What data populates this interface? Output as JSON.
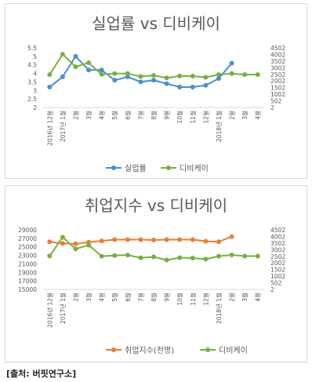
{
  "chart_data": [
    {
      "type": "line",
      "title": "실업률 vs 디비케이",
      "categories": [
        "2016년 12월",
        "2017년 1월",
        "2월",
        "3월",
        "4월",
        "5월",
        "6월",
        "7월",
        "8월",
        "9월",
        "10월",
        "11월",
        "12월",
        "2018년 1월",
        "2월",
        "3월",
        "4월"
      ],
      "y_left": {
        "min": 2,
        "max": 5.5,
        "ticks": [
          "2",
          "2.5",
          "3",
          "3.5",
          "4",
          "4.5",
          "5",
          "5.5"
        ]
      },
      "y_right": {
        "min": 2,
        "max": 4502,
        "ticks": [
          "2",
          "502",
          "1002",
          "1502",
          "2002",
          "2502",
          "3002",
          "3502",
          "4002",
          "4502"
        ]
      },
      "series": [
        {
          "name": "실업률",
          "axis": "left",
          "color": "#4a8fd0",
          "values": [
            3.2,
            3.8,
            5.0,
            4.2,
            4.2,
            3.6,
            3.8,
            3.5,
            3.6,
            3.4,
            3.2,
            3.2,
            3.3,
            3.7,
            4.6,
            null,
            null
          ]
        },
        {
          "name": "디비케이",
          "axis": "right",
          "color": "#77b041",
          "values": [
            2480,
            4020,
            3070,
            3380,
            2500,
            2560,
            2560,
            2340,
            2420,
            2230,
            2380,
            2370,
            2280,
            2480,
            2560,
            2480,
            2480
          ]
        }
      ]
    },
    {
      "type": "line",
      "title": "취업지수 vs 디비케이",
      "categories": [
        "2016년 12월",
        "2017년 1월",
        "2월",
        "3월",
        "4월",
        "5월",
        "6월",
        "7월",
        "8월",
        "9월",
        "10월",
        "11월",
        "12월",
        "2018년 1월",
        "2월",
        "3월",
        "4월"
      ],
      "y_left": {
        "min": 15000,
        "max": 29000,
        "ticks": [
          "15000",
          "17000",
          "19000",
          "21000",
          "23000",
          "25000",
          "27000",
          "29000"
        ]
      },
      "y_right": {
        "min": 2,
        "max": 4502,
        "ticks": [
          "2",
          "502",
          "1002",
          "1502",
          "2002",
          "2502",
          "3002",
          "3502",
          "4002",
          "4502"
        ]
      },
      "series": [
        {
          "name": "취업지수(천명)",
          "axis": "left",
          "color": "#ed7d31",
          "values": [
            26200,
            25800,
            25700,
            26100,
            26400,
            26700,
            26700,
            26700,
            26600,
            26700,
            26700,
            26700,
            26300,
            26200,
            27400,
            null,
            null
          ]
        },
        {
          "name": "디비케이",
          "axis": "right",
          "color": "#77b041",
          "values": [
            2530,
            3940,
            3060,
            3350,
            2510,
            2560,
            2600,
            2390,
            2460,
            2220,
            2400,
            2370,
            2290,
            2510,
            2610,
            2520,
            2520
          ]
        }
      ]
    }
  ],
  "source_label": "[출처: 버핏연구소]"
}
